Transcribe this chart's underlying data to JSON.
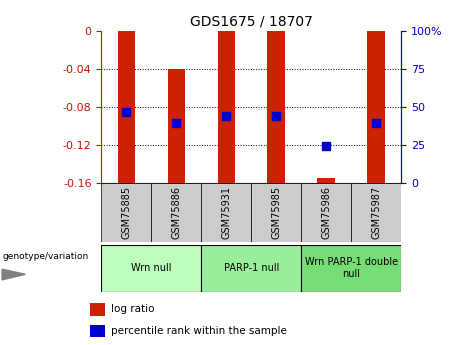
{
  "title": "GDS1675 / 18707",
  "samples": [
    "GSM75885",
    "GSM75886",
    "GSM75931",
    "GSM75985",
    "GSM75986",
    "GSM75987"
  ],
  "bar_top": [
    0.0,
    -0.04,
    0.0,
    0.0,
    -0.155,
    0.0
  ],
  "bar_bottom": [
    -0.16,
    -0.16,
    -0.16,
    -0.16,
    -0.16,
    -0.16
  ],
  "blue_dot_y": [
    -0.085,
    -0.097,
    -0.09,
    -0.09,
    -0.121,
    -0.097
  ],
  "bar_color": "#cc2200",
  "dot_color": "#0000cc",
  "yticks_left": [
    0.0,
    -0.04,
    -0.08,
    -0.12,
    -0.16
  ],
  "ytick_labels_left": [
    "0",
    "-0.04",
    "-0.08",
    "-0.12",
    "-0.16"
  ],
  "right_ticks_y": [
    0.0,
    -0.04,
    -0.08,
    -0.12,
    -0.16
  ],
  "right_ticks_labels": [
    "100%",
    "75",
    "50",
    "25",
    "0"
  ],
  "groups": [
    {
      "label": "Wrn null",
      "samples": [
        0,
        1
      ],
      "color": "#bbffbb"
    },
    {
      "label": "PARP-1 null",
      "samples": [
        2,
        3
      ],
      "color": "#99ee99"
    },
    {
      "label": "Wrn PARP-1 double\nnull",
      "samples": [
        4,
        5
      ],
      "color": "#77dd77"
    }
  ],
  "legend_red_label": "log ratio",
  "legend_blue_label": "percentile rank within the sample",
  "genotype_label": "genotype/variation",
  "bar_color_red": "#cc1100",
  "dot_color_blue": "#0000cc",
  "axis_color_left": "#cc1100",
  "axis_color_right": "#0000cc",
  "bar_width": 0.35,
  "sample_box_color": "#cccccc"
}
